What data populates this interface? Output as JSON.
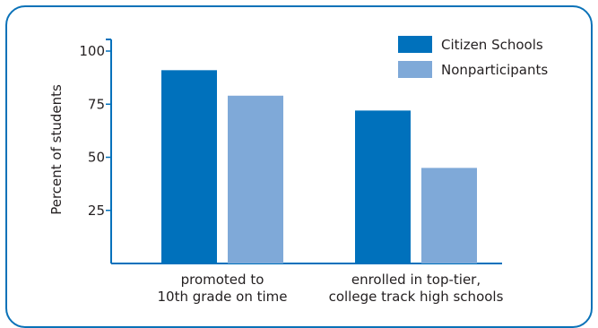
{
  "chart_data": {
    "type": "bar",
    "title": "",
    "xlabel": "",
    "ylabel": "Percent of students",
    "ylim": [
      0,
      100
    ],
    "yticks": [
      "25",
      "50",
      "75",
      "100"
    ],
    "categories": [
      [
        "promoted to",
        "10th grade on time"
      ],
      [
        "enrolled in top-tier,",
        "college track high schools"
      ]
    ],
    "series": [
      {
        "name": "Citizen Schools",
        "color": "#0071bc",
        "values": [
          91,
          72
        ]
      },
      {
        "name": "Nonparticipants",
        "color": "#7fa9d8",
        "values": [
          79,
          45
        ]
      }
    ],
    "legend_position": "top-right",
    "grid": false
  },
  "colors": {
    "frame": "#0a72b8",
    "axis": "#0071bc",
    "text": "#231f20"
  }
}
